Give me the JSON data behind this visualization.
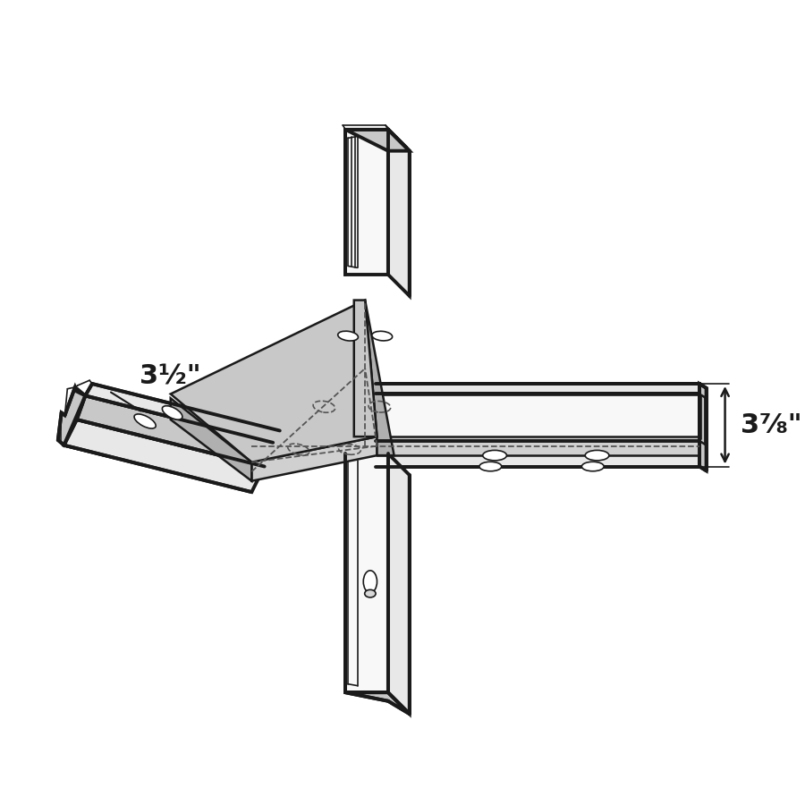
{
  "background_color": "#ffffff",
  "line_color": "#1a1a1a",
  "fill_light_gray": "#e8e8e8",
  "fill_mid_gray": "#c8c8c8",
  "fill_dark_gray": "#b0b0b0",
  "fill_plate_top": "#d0d0d0",
  "fill_plate_side": "#a8a8a8",
  "fill_white": "#f8f8f8",
  "dim1_label": "3½\"",
  "dim2_label": "3⅞\""
}
